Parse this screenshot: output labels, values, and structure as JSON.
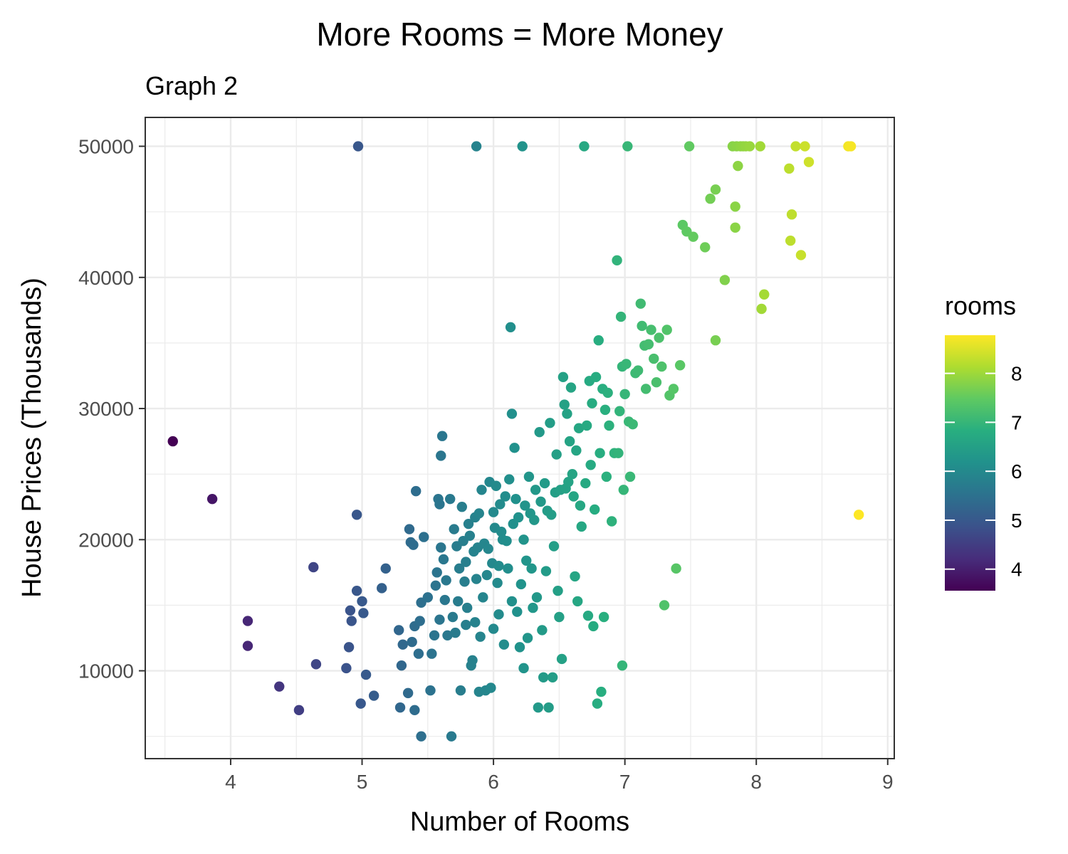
{
  "chart_data": {
    "type": "scatter",
    "title": "More Rooms = More Money",
    "subtitle": "Graph 2",
    "xlabel": "Number of Rooms",
    "ylabel": "House Prices (Thousands)",
    "xlim": [
      3.35,
      9.05
    ],
    "ylim": [
      3300,
      52200
    ],
    "x_ticks": [
      4,
      5,
      6,
      7,
      8,
      9
    ],
    "y_ticks": [
      10000,
      20000,
      30000,
      40000,
      50000
    ],
    "grid": true,
    "legend": {
      "title": "rooms",
      "position": "right",
      "range": [
        3.56,
        8.78
      ],
      "ticks": [
        4,
        5,
        6,
        7,
        8
      ]
    },
    "colors": {
      "viridis": [
        "#440154",
        "#472d7b",
        "#3b528b",
        "#2c728e",
        "#21918c",
        "#28ae80",
        "#5ec962",
        "#addc30",
        "#fde725"
      ],
      "grid": "#ebebeb",
      "panel_border": "#333333"
    },
    "points": [
      [
        3.56,
        27500
      ],
      [
        3.86,
        23100
      ],
      [
        4.13,
        13800
      ],
      [
        4.13,
        11900
      ],
      [
        4.37,
        8800
      ],
      [
        4.52,
        7000
      ],
      [
        4.63,
        17900
      ],
      [
        4.65,
        10500
      ],
      [
        4.88,
        10200
      ],
      [
        4.9,
        11800
      ],
      [
        4.91,
        14600
      ],
      [
        4.92,
        13800
      ],
      [
        4.96,
        16100
      ],
      [
        4.96,
        21900
      ],
      [
        4.97,
        50000
      ],
      [
        4.99,
        7500
      ],
      [
        5.0,
        15300
      ],
      [
        5.01,
        14400
      ],
      [
        5.03,
        9700
      ],
      [
        5.09,
        8100
      ],
      [
        5.15,
        16300
      ],
      [
        5.18,
        17800
      ],
      [
        5.28,
        13100
      ],
      [
        5.29,
        7200
      ],
      [
        5.3,
        10400
      ],
      [
        5.31,
        12000
      ],
      [
        5.35,
        8300
      ],
      [
        5.36,
        20800
      ],
      [
        5.37,
        19800
      ],
      [
        5.38,
        12200
      ],
      [
        5.39,
        19600
      ],
      [
        5.4,
        13400
      ],
      [
        5.4,
        7000
      ],
      [
        5.41,
        23700
      ],
      [
        5.43,
        11300
      ],
      [
        5.44,
        13800
      ],
      [
        5.45,
        5000
      ],
      [
        5.45,
        15200
      ],
      [
        5.47,
        20200
      ],
      [
        5.5,
        15600
      ],
      [
        5.52,
        8500
      ],
      [
        5.53,
        11300
      ],
      [
        5.55,
        12700
      ],
      [
        5.56,
        16500
      ],
      [
        5.57,
        17500
      ],
      [
        5.58,
        23100
      ],
      [
        5.59,
        22700
      ],
      [
        5.59,
        13900
      ],
      [
        5.6,
        26400
      ],
      [
        5.6,
        19400
      ],
      [
        5.61,
        27900
      ],
      [
        5.62,
        18500
      ],
      [
        5.63,
        15400
      ],
      [
        5.64,
        16900
      ],
      [
        5.65,
        12700
      ],
      [
        5.67,
        23100
      ],
      [
        5.68,
        5000
      ],
      [
        5.69,
        14100
      ],
      [
        5.7,
        20800
      ],
      [
        5.71,
        12900
      ],
      [
        5.72,
        19500
      ],
      [
        5.73,
        15300
      ],
      [
        5.74,
        17800
      ],
      [
        5.75,
        8500
      ],
      [
        5.76,
        22500
      ],
      [
        5.77,
        19900
      ],
      [
        5.78,
        16800
      ],
      [
        5.79,
        18300
      ],
      [
        5.79,
        13500
      ],
      [
        5.8,
        14800
      ],
      [
        5.81,
        21200
      ],
      [
        5.82,
        20300
      ],
      [
        5.83,
        10400
      ],
      [
        5.84,
        10800
      ],
      [
        5.85,
        19100
      ],
      [
        5.86,
        13700
      ],
      [
        5.86,
        21700
      ],
      [
        5.87,
        50000
      ],
      [
        5.87,
        17000
      ],
      [
        5.88,
        19400
      ],
      [
        5.89,
        22000
      ],
      [
        5.89,
        8400
      ],
      [
        5.9,
        12600
      ],
      [
        5.91,
        23800
      ],
      [
        5.92,
        15600
      ],
      [
        5.93,
        19700
      ],
      [
        5.94,
        8500
      ],
      [
        5.95,
        17300
      ],
      [
        5.96,
        19300
      ],
      [
        5.97,
        24400
      ],
      [
        5.98,
        8700
      ],
      [
        5.99,
        18200
      ],
      [
        6.0,
        22100
      ],
      [
        6.0,
        13200
      ],
      [
        6.01,
        20900
      ],
      [
        6.02,
        24100
      ],
      [
        6.03,
        16700
      ],
      [
        6.04,
        18000
      ],
      [
        6.04,
        14300
      ],
      [
        6.05,
        22700
      ],
      [
        6.06,
        20600
      ],
      [
        6.07,
        20000
      ],
      [
        6.08,
        12000
      ],
      [
        6.09,
        23300
      ],
      [
        6.1,
        19900
      ],
      [
        6.11,
        17800
      ],
      [
        6.12,
        24600
      ],
      [
        6.13,
        36200
      ],
      [
        6.14,
        15300
      ],
      [
        6.14,
        29600
      ],
      [
        6.15,
        21200
      ],
      [
        6.16,
        27000
      ],
      [
        6.17,
        23100
      ],
      [
        6.18,
        14500
      ],
      [
        6.19,
        21700
      ],
      [
        6.2,
        11800
      ],
      [
        6.21,
        16600
      ],
      [
        6.22,
        50000
      ],
      [
        6.23,
        20000
      ],
      [
        6.23,
        10200
      ],
      [
        6.24,
        22600
      ],
      [
        6.25,
        18400
      ],
      [
        6.26,
        12500
      ],
      [
        6.27,
        24800
      ],
      [
        6.28,
        22000
      ],
      [
        6.29,
        17800
      ],
      [
        6.3,
        14800
      ],
      [
        6.31,
        21500
      ],
      [
        6.32,
        23800
      ],
      [
        6.33,
        15600
      ],
      [
        6.34,
        7200
      ],
      [
        6.35,
        28200
      ],
      [
        6.36,
        22900
      ],
      [
        6.37,
        13100
      ],
      [
        6.38,
        9500
      ],
      [
        6.39,
        24300
      ],
      [
        6.4,
        17600
      ],
      [
        6.41,
        22200
      ],
      [
        6.42,
        7200
      ],
      [
        6.43,
        28900
      ],
      [
        6.44,
        21900
      ],
      [
        6.45,
        9500
      ],
      [
        6.46,
        19500
      ],
      [
        6.47,
        23600
      ],
      [
        6.48,
        26500
      ],
      [
        6.49,
        16100
      ],
      [
        6.5,
        14100
      ],
      [
        6.51,
        23800
      ],
      [
        6.52,
        10900
      ],
      [
        6.53,
        32400
      ],
      [
        6.54,
        30300
      ],
      [
        6.55,
        23900
      ],
      [
        6.56,
        29600
      ],
      [
        6.57,
        24400
      ],
      [
        6.58,
        27500
      ],
      [
        6.59,
        31600
      ],
      [
        6.6,
        25000
      ],
      [
        6.61,
        23300
      ],
      [
        6.62,
        17200
      ],
      [
        6.63,
        26800
      ],
      [
        6.64,
        15300
      ],
      [
        6.65,
        28500
      ],
      [
        6.66,
        22600
      ],
      [
        6.67,
        21000
      ],
      [
        6.69,
        50000
      ],
      [
        6.7,
        24300
      ],
      [
        6.71,
        28700
      ],
      [
        6.72,
        14200
      ],
      [
        6.73,
        32100
      ],
      [
        6.74,
        25700
      ],
      [
        6.75,
        30400
      ],
      [
        6.76,
        13400
      ],
      [
        6.77,
        22300
      ],
      [
        6.78,
        32400
      ],
      [
        6.79,
        7500
      ],
      [
        6.8,
        35200
      ],
      [
        6.81,
        26600
      ],
      [
        6.82,
        8400
      ],
      [
        6.83,
        31500
      ],
      [
        6.84,
        14100
      ],
      [
        6.85,
        29900
      ],
      [
        6.86,
        24800
      ],
      [
        6.87,
        31200
      ],
      [
        6.88,
        28700
      ],
      [
        6.9,
        21400
      ],
      [
        6.92,
        26600
      ],
      [
        6.94,
        41300
      ],
      [
        6.95,
        26600
      ],
      [
        6.96,
        29800
      ],
      [
        6.97,
        37000
      ],
      [
        6.98,
        33200
      ],
      [
        6.98,
        10400
      ],
      [
        6.99,
        23800
      ],
      [
        7.0,
        31100
      ],
      [
        7.01,
        33400
      ],
      [
        7.02,
        50000
      ],
      [
        7.03,
        29000
      ],
      [
        7.04,
        24800
      ],
      [
        7.06,
        28800
      ],
      [
        7.08,
        32700
      ],
      [
        7.1,
        32900
      ],
      [
        7.12,
        38000
      ],
      [
        7.13,
        36300
      ],
      [
        7.15,
        34800
      ],
      [
        7.16,
        31500
      ],
      [
        7.18,
        34900
      ],
      [
        7.2,
        36000
      ],
      [
        7.22,
        33800
      ],
      [
        7.24,
        32000
      ],
      [
        7.26,
        35400
      ],
      [
        7.28,
        33200
      ],
      [
        7.3,
        15000
      ],
      [
        7.32,
        36000
      ],
      [
        7.34,
        31000
      ],
      [
        7.37,
        31500
      ],
      [
        7.39,
        17800
      ],
      [
        7.42,
        33300
      ],
      [
        7.44,
        44000
      ],
      [
        7.47,
        43500
      ],
      [
        7.49,
        50000
      ],
      [
        7.52,
        43100
      ],
      [
        7.61,
        42300
      ],
      [
        7.65,
        46000
      ],
      [
        7.69,
        46700
      ],
      [
        7.69,
        35200
      ],
      [
        7.76,
        39800
      ],
      [
        7.82,
        50000
      ],
      [
        7.84,
        45400
      ],
      [
        7.84,
        43800
      ],
      [
        7.85,
        50000
      ],
      [
        7.86,
        48500
      ],
      [
        7.88,
        50000
      ],
      [
        7.9,
        50000
      ],
      [
        7.92,
        50000
      ],
      [
        7.95,
        50000
      ],
      [
        8.03,
        50000
      ],
      [
        8.04,
        37600
      ],
      [
        8.06,
        38700
      ],
      [
        8.25,
        48300
      ],
      [
        8.26,
        42800
      ],
      [
        8.27,
        44800
      ],
      [
        8.3,
        50000
      ],
      [
        8.34,
        41700
      ],
      [
        8.37,
        50000
      ],
      [
        8.4,
        48800
      ],
      [
        8.7,
        50000
      ],
      [
        8.72,
        50000
      ],
      [
        8.78,
        21900
      ]
    ]
  }
}
